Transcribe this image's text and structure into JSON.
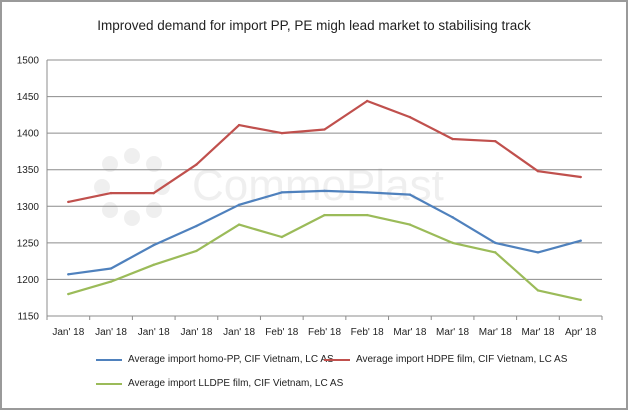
{
  "chart_data": {
    "type": "line",
    "title": "Improved demand for import PP, PE migh lead market to stabilising track",
    "categories": [
      "Jan' 18",
      "Jan' 18",
      "Jan' 18",
      "Jan' 18",
      "Jan' 18",
      "Feb' 18",
      "Feb' 18",
      "Feb' 18",
      "Mar' 18",
      "Mar' 18",
      "Mar' 18",
      "Mar' 18",
      "Apr' 18"
    ],
    "ylim": [
      1150,
      1500
    ],
    "yticks": [
      1150,
      1200,
      1250,
      1300,
      1350,
      1400,
      1450,
      1500
    ],
    "grid": true,
    "legend_position": "bottom",
    "series": [
      {
        "name": "Average import homo-PP, CIF Vietnam, LC AS",
        "color": "#4f81bd",
        "values": [
          1207,
          1215,
          1247,
          1273,
          1302,
          1319,
          1321,
          1319,
          1316,
          1285,
          1250,
          1237,
          1253
        ]
      },
      {
        "name": "Average import HDPE film, CIF Vietnam, LC AS",
        "color": "#c0504d",
        "values": [
          1306,
          1318,
          1318,
          1357,
          1411,
          1400,
          1405,
          1444,
          1422,
          1392,
          1389,
          1348,
          1340
        ]
      },
      {
        "name": "Average import LLDPE film, CIF Vietnam, LC AS",
        "color": "#9bbb59",
        "values": [
          1180,
          1197,
          1220,
          1239,
          1275,
          1258,
          1288,
          1288,
          1275,
          1250,
          1237,
          1185,
          1172
        ]
      }
    ]
  },
  "watermark": {
    "text": "CommoPlast"
  }
}
